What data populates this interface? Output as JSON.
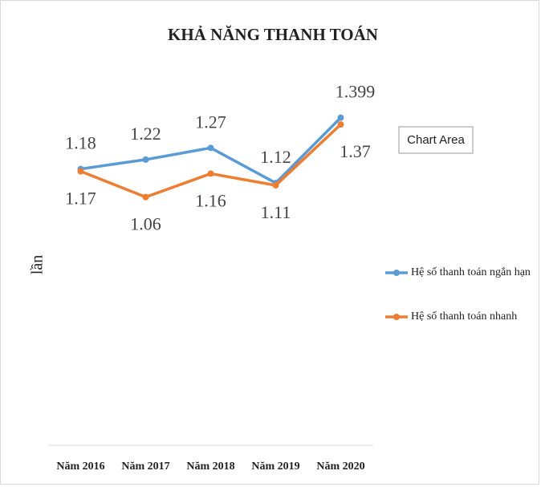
{
  "chart_data": {
    "type": "line",
    "title": "KHẢ NĂNG THANH TOÁN",
    "y_label": "lần",
    "tooltip": "Chart Area",
    "categories": [
      "Năm 2016",
      "Năm 2017",
      "Năm 2018",
      "Năm 2019",
      "Năm 2020"
    ],
    "series": [
      {
        "name": "Hệ số thanh toán ngắn hạn",
        "color": "#5b9bd5",
        "values": [
          1.18,
          1.22,
          1.27,
          1.12,
          1.399
        ]
      },
      {
        "name": "Hệ số thanh toán nhanh",
        "color": "#ed7d31",
        "values": [
          1.17,
          1.06,
          1.16,
          1.11,
          1.37
        ]
      }
    ],
    "ylim": [
      0,
      1.6
    ],
    "legend": "right"
  }
}
